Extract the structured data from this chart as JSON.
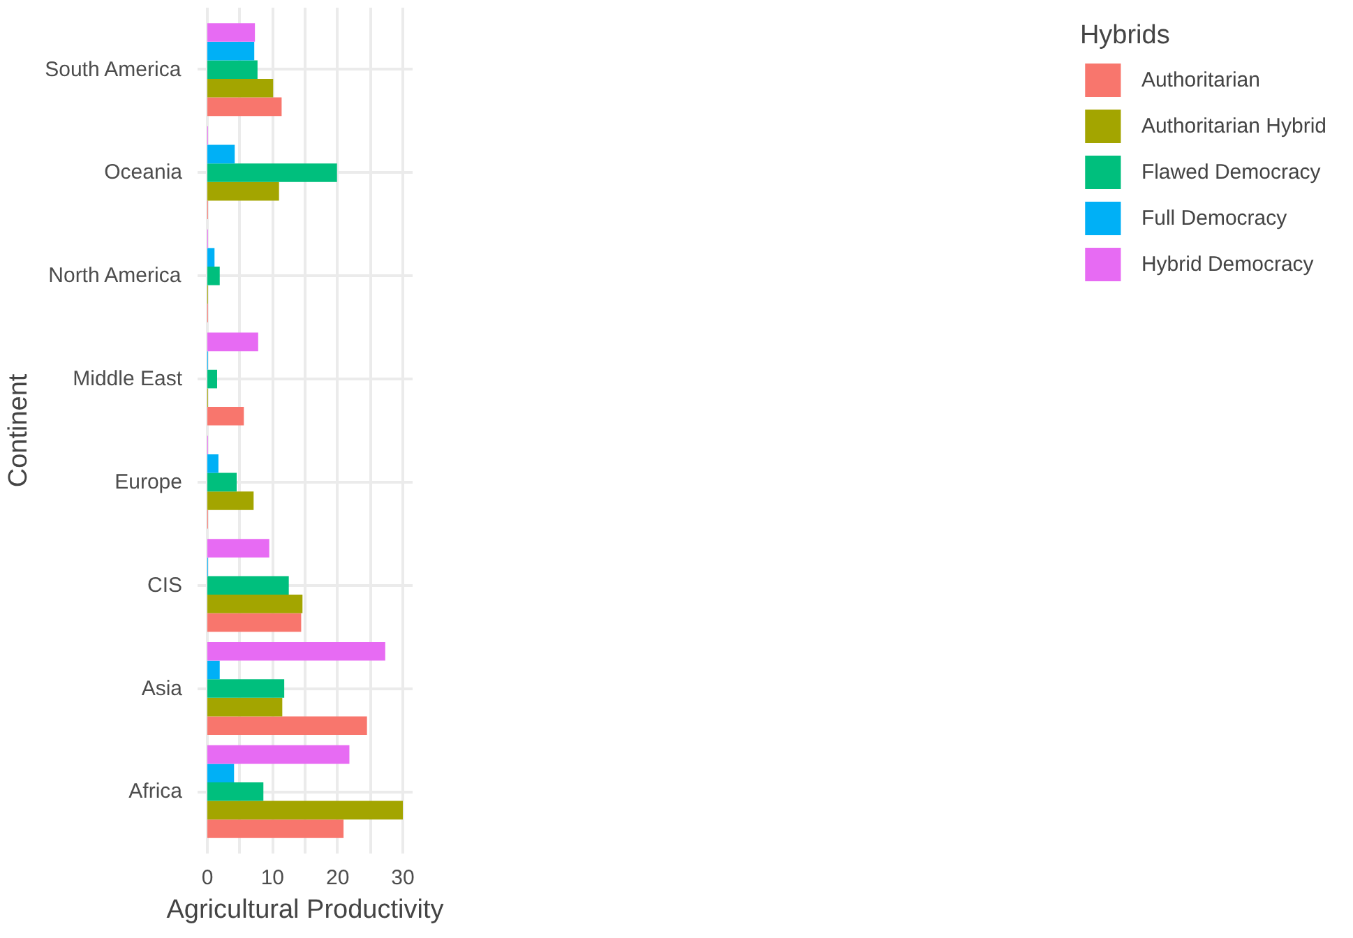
{
  "chart_data": {
    "type": "bar",
    "orientation": "horizontal",
    "xlabel": "Agricultural Productivity",
    "ylabel": "Continent",
    "legend_title": "Hybrids",
    "legend": "right",
    "grid": true,
    "categories": [
      "South America",
      "Oceania",
      "North America",
      "Middle East",
      "Europe",
      "CIS",
      "Asia",
      "Africa"
    ],
    "xlim": [
      -1.5,
      31.5
    ],
    "xticks": [
      0,
      {
        "value": 5,
        "label": null
      },
      10,
      {
        "value": 15,
        "label": null
      },
      20,
      {
        "value": 25,
        "label": null
      },
      30
    ],
    "series": [
      {
        "name": "Authoritarian",
        "color": "#f8766d",
        "values": [
          11.4,
          0.1,
          0.1,
          5.6,
          0.1,
          14.4,
          24.5,
          20.9
        ]
      },
      {
        "name": "Authoritarian Hybrid",
        "color": "#a3a500",
        "values": [
          10.1,
          11.0,
          0.1,
          0.1,
          7.1,
          14.6,
          11.5,
          30.0
        ]
      },
      {
        "name": "Flawed Democracy",
        "color": "#00bf7d",
        "values": [
          7.7,
          19.9,
          1.9,
          1.5,
          4.5,
          12.5,
          11.8,
          8.6
        ]
      },
      {
        "name": "Full Democracy",
        "color": "#00b0f6",
        "values": [
          7.2,
          4.2,
          1.1,
          0.1,
          1.7,
          0.1,
          1.9,
          4.1
        ]
      },
      {
        "name": "Hybrid Democracy",
        "color": "#e76bf3",
        "values": [
          7.3,
          0.1,
          0.1,
          7.8,
          0.1,
          9.5,
          27.3,
          21.8
        ]
      }
    ]
  }
}
